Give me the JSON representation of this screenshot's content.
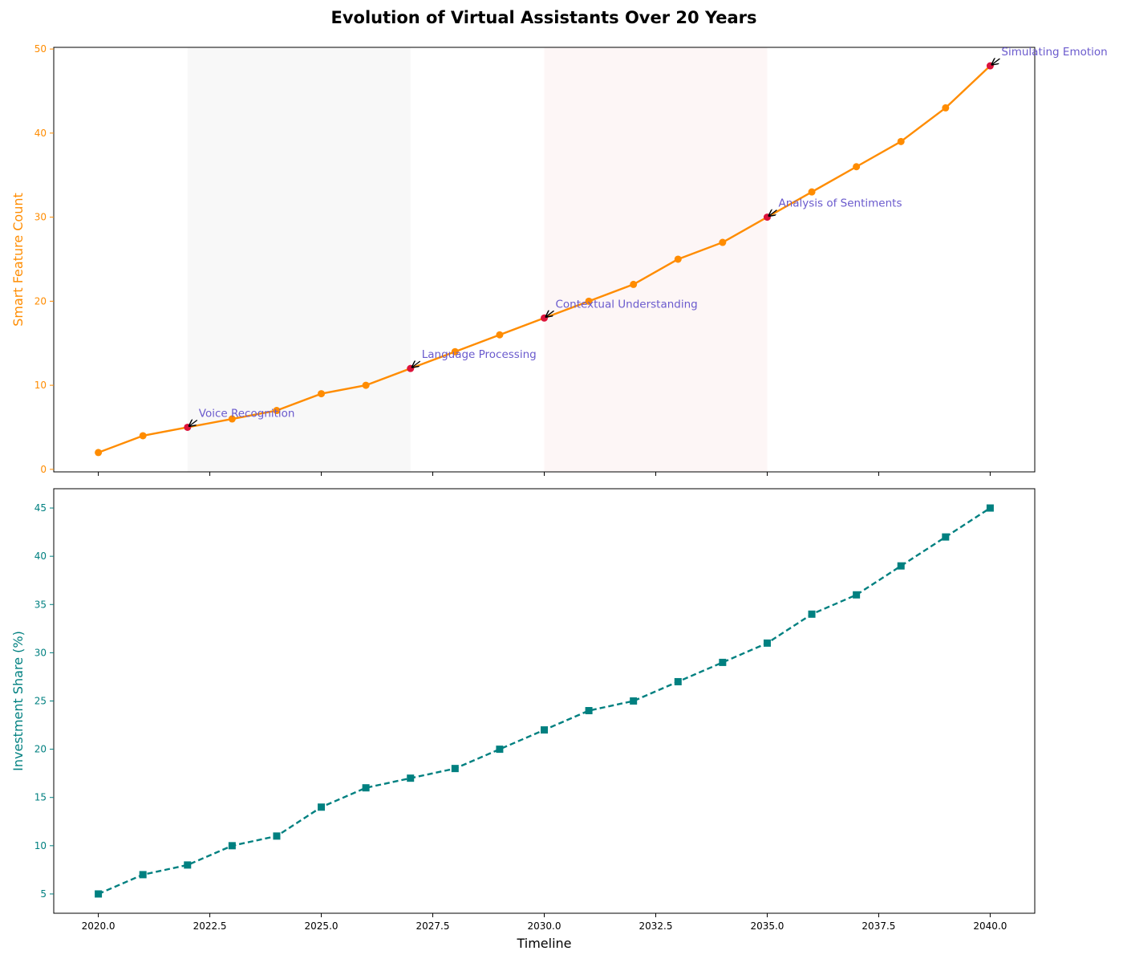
{
  "chart_data": {
    "title": "Evolution of Virtual Assistants Over 20 Years",
    "xlabel": "Timeline",
    "x": [
      2020,
      2021,
      2022,
      2023,
      2024,
      2025,
      2026,
      2027,
      2028,
      2029,
      2030,
      2031,
      2032,
      2033,
      2034,
      2035,
      2036,
      2037,
      2038,
      2039,
      2040
    ],
    "xlim": [
      2019,
      2041
    ],
    "xticks": [
      2020.0,
      2022.5,
      2025.0,
      2027.5,
      2030.0,
      2032.5,
      2035.0,
      2037.5,
      2040.0
    ],
    "xtick_labels": [
      "2020.0",
      "2022.5",
      "2025.0",
      "2027.5",
      "2030.0",
      "2032.5",
      "2035.0",
      "2037.5",
      "2040.0"
    ],
    "panels": [
      {
        "type": "line",
        "ylabel": "Smart Feature Count",
        "color": "#ff8c00",
        "marker": "circle",
        "linestyle": "solid",
        "ylim": [
          -0.3,
          50.2
        ],
        "yticks": [
          0,
          10,
          20,
          30,
          40,
          50
        ],
        "values": [
          2,
          4,
          5,
          6,
          7,
          9,
          10,
          12,
          14,
          16,
          18,
          20,
          22,
          25,
          27,
          30,
          33,
          36,
          39,
          43,
          48
        ],
        "shaded_spans": [
          {
            "from": 2022,
            "to": 2027,
            "color": "#d3d3d3"
          },
          {
            "from": 2030,
            "to": 2035,
            "color": "#f4c2c2"
          }
        ],
        "milestones": [
          {
            "year": 2022,
            "value": 5,
            "label": "Voice Recognition"
          },
          {
            "year": 2027,
            "value": 12,
            "label": "Language Processing"
          },
          {
            "year": 2030,
            "value": 18,
            "label": "Contextual Understanding"
          },
          {
            "year": 2035,
            "value": 30,
            "label": "Analysis of Sentiments"
          },
          {
            "year": 2040,
            "value": 48,
            "label": "Simulating Emotion"
          }
        ],
        "milestone_color": "#dc143c",
        "annotation_color": "#6a5acd"
      },
      {
        "type": "line",
        "ylabel": "Investment Share (%)",
        "color": "#008080",
        "marker": "square",
        "linestyle": "dashed",
        "ylim": [
          3,
          47
        ],
        "yticks": [
          5,
          10,
          15,
          20,
          25,
          30,
          35,
          40,
          45
        ],
        "values": [
          5,
          7,
          8,
          10,
          11,
          14,
          16,
          17,
          18,
          20,
          22,
          24,
          25,
          27,
          29,
          31,
          34,
          36,
          39,
          42,
          45
        ]
      }
    ],
    "grid": false,
    "legend": "none"
  }
}
